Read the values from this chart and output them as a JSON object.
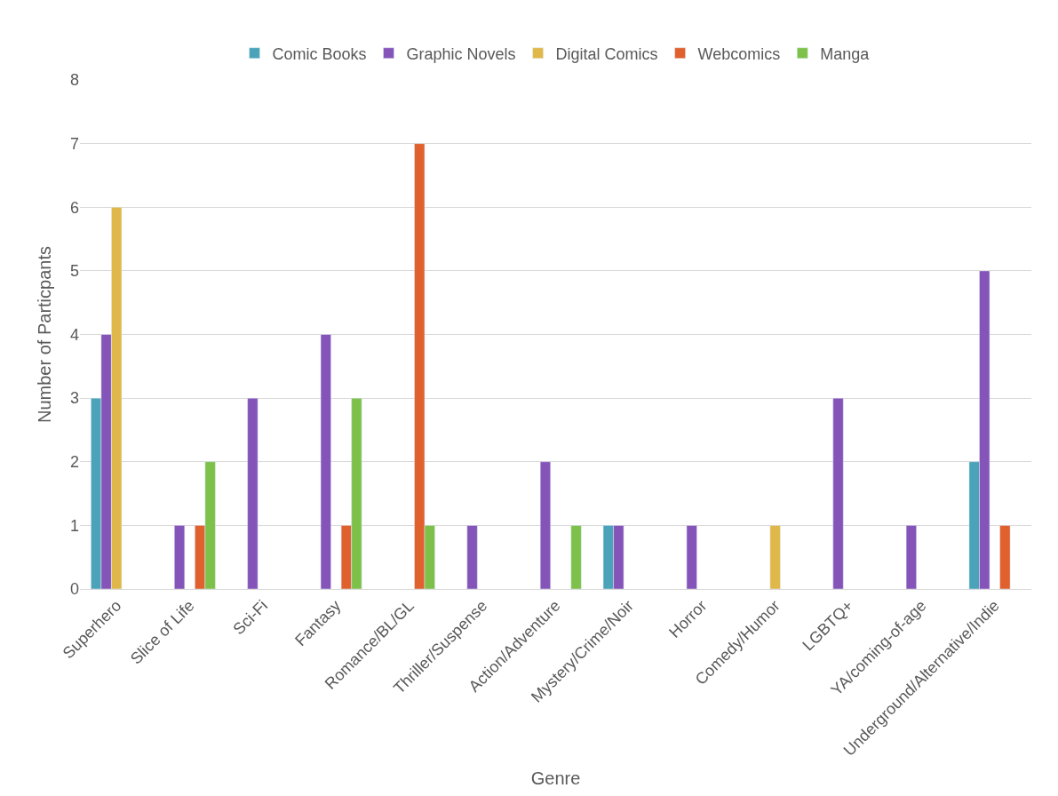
{
  "chart_data": {
    "type": "bar",
    "xlabel": "Genre",
    "ylabel": "Number of Particpants",
    "categories": [
      "Superhero",
      "Slice of Life",
      "Sci-Fi",
      "Fantasy",
      "Romance/BL/GL",
      "Thriller/Suspense",
      "Action/Adventure",
      "Mystery/Crime/Noir",
      "Horror",
      "Comedy/Humor",
      "LGBTQ+",
      "YA/coming-of-age",
      "Underground/Alternative/Indie"
    ],
    "series": [
      {
        "name": "Comic Books",
        "color": "#4aa3b8",
        "values": [
          3,
          null,
          null,
          null,
          null,
          null,
          null,
          1,
          null,
          null,
          null,
          null,
          2
        ]
      },
      {
        "name": "Graphic Novels",
        "color": "#8454b9",
        "values": [
          4,
          1,
          3,
          4,
          null,
          1,
          2,
          1,
          1,
          null,
          3,
          1,
          5
        ]
      },
      {
        "name": "Digital Comics",
        "color": "#e0b84a",
        "values": [
          6,
          null,
          null,
          null,
          null,
          null,
          null,
          null,
          null,
          1,
          null,
          null,
          null
        ]
      },
      {
        "name": "Webcomics",
        "color": "#e0602e",
        "values": [
          null,
          1,
          null,
          1,
          7,
          null,
          null,
          null,
          null,
          null,
          null,
          null,
          1
        ]
      },
      {
        "name": "Manga",
        "color": "#7dc14a",
        "values": [
          null,
          2,
          null,
          3,
          1,
          null,
          1,
          null,
          null,
          null,
          null,
          null,
          null
        ]
      }
    ],
    "ylim": [
      0,
      8
    ],
    "yticks": [
      0,
      1,
      2,
      3,
      4,
      5,
      6,
      7,
      8
    ],
    "grid": "y",
    "legend": "top"
  }
}
